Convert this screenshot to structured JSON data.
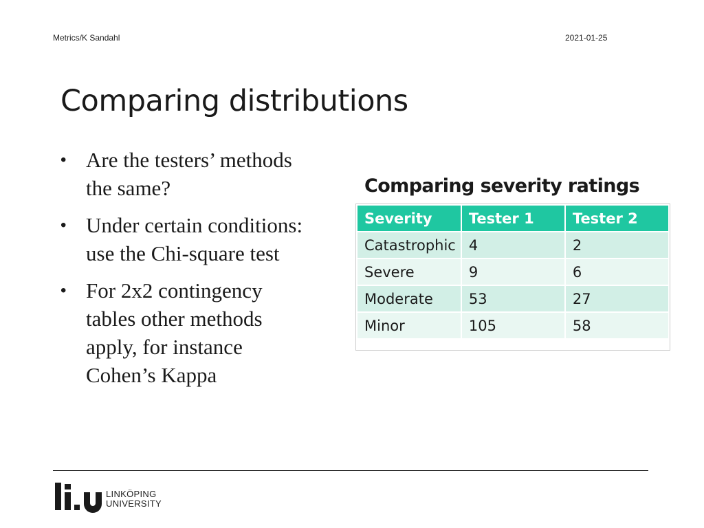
{
  "header": {
    "left_text": "Metrics/K Sandahl",
    "date": "2021-01-25"
  },
  "slide": {
    "title": "Comparing distributions",
    "bullets": [
      "Are the testers’ methods the same?",
      "Under certain conditions: use the Chi-square test",
      "For 2x2 contingency tables other methods apply, for instance Cohen’s Kappa"
    ]
  },
  "table": {
    "title": "Comparing severity ratings",
    "headers": [
      "Severity",
      "Tester 1",
      "Tester 2"
    ],
    "rows": [
      [
        "Catastrophic",
        "4",
        "2"
      ],
      [
        "Severe",
        "9",
        "6"
      ],
      [
        "Moderate",
        "53",
        "27"
      ],
      [
        "Minor",
        "105",
        "58"
      ]
    ]
  },
  "footer": {
    "logo_line1": "LINKÖPING",
    "logo_line2": "UNIVERSITY"
  },
  "colors": {
    "table_header": "#1fc7a1",
    "row_odd": "#d2efe6",
    "row_even": "#e9f7f2"
  }
}
